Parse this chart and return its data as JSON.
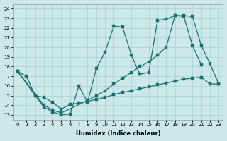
{
  "xlabel": "Humidex (Indice chaleur)",
  "bg_color": "#cce8e8",
  "line_color": "#1a7070",
  "grid_color": "#aad0d0",
  "xlim": [
    -0.5,
    23.5
  ],
  "ylim": [
    12.5,
    24.5
  ],
  "xticks": [
    0,
    1,
    2,
    3,
    4,
    5,
    6,
    7,
    8,
    9,
    10,
    11,
    12,
    13,
    14,
    15,
    16,
    17,
    18,
    19,
    20,
    21,
    22,
    23
  ],
  "yticks": [
    13,
    14,
    15,
    16,
    17,
    18,
    19,
    20,
    21,
    22,
    23,
    24
  ],
  "curves": [
    {
      "x": [
        0,
        1,
        2,
        3,
        4,
        5,
        6,
        7,
        8,
        9,
        10,
        11,
        12,
        13,
        14,
        15,
        16,
        17,
        18,
        19,
        20,
        21
      ],
      "y": [
        17.5,
        17.0,
        15.0,
        13.8,
        13.3,
        13.0,
        13.1,
        16.0,
        14.3,
        17.8,
        19.5,
        22.2,
        22.1,
        19.2,
        17.2,
        17.4,
        22.8,
        22.9,
        23.3,
        23.2,
        20.2,
        18.2
      ]
    },
    {
      "x": [
        0,
        3,
        4,
        5,
        8,
        9,
        10,
        11,
        12,
        13,
        14,
        15,
        16,
        17,
        18,
        19,
        20,
        21,
        22,
        23
      ],
      "y": [
        17.5,
        14.0,
        13.5,
        13.2,
        14.5,
        15.0,
        15.5,
        16.2,
        16.8,
        17.4,
        18.0,
        18.5,
        19.2,
        20.0,
        23.3,
        23.3,
        23.2,
        20.2,
        18.3,
        16.2
      ]
    },
    {
      "x": [
        0,
        2,
        3,
        4,
        5,
        6,
        7,
        8,
        9,
        10,
        11,
        12,
        13,
        14,
        15,
        16,
        17,
        18,
        19,
        20,
        21,
        22,
        23
      ],
      "y": [
        17.5,
        15.0,
        14.8,
        14.3,
        13.6,
        14.1,
        14.2,
        14.4,
        14.6,
        14.8,
        15.1,
        15.3,
        15.5,
        15.7,
        15.9,
        16.1,
        16.3,
        16.5,
        16.7,
        16.8,
        16.9,
        16.2,
        16.2
      ]
    }
  ]
}
